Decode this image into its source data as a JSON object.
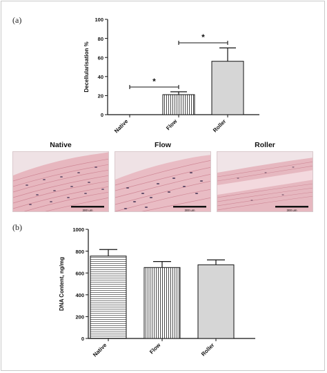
{
  "panels": {
    "a_label": "(a)",
    "b_label": "(b)"
  },
  "micrographs": [
    {
      "title": "Native",
      "scale_label": "300 μm"
    },
    {
      "title": "Flow",
      "scale_label": "300 μm"
    },
    {
      "title": "Roller",
      "scale_label": "300 μm"
    }
  ],
  "colors": {
    "tissue_pink": "#e7b7bf",
    "tissue_light": "#f4dde1",
    "fiber": "#c97b8b",
    "nucleus": "#4b3a5a",
    "bar_fill": "#d6d6d6",
    "axis": "#111111"
  },
  "chart_data": [
    {
      "type": "bar",
      "categories": [
        "Native",
        "Flow",
        "Roller"
      ],
      "values": [
        0,
        21,
        56
      ],
      "errors": [
        0,
        3,
        14
      ],
      "patterns": [
        "none",
        "vertical-lines",
        "solid-grey"
      ],
      "xlabel": "",
      "ylabel": "Decellularisation %",
      "ylim": [
        0,
        100
      ],
      "yticks": [
        0,
        20,
        40,
        60,
        80,
        100
      ],
      "significance": [
        {
          "from": "Native",
          "to": "Flow",
          "label": "*"
        },
        {
          "from": "Flow",
          "to": "Roller",
          "label": "*"
        }
      ],
      "grid": false,
      "legend": "none"
    },
    {
      "type": "bar",
      "categories": [
        "Native",
        "Flow",
        "Roller"
      ],
      "values": [
        755,
        650,
        675
      ],
      "errors": [
        60,
        55,
        45
      ],
      "patterns": [
        "horizontal-lines",
        "vertical-lines",
        "solid-grey"
      ],
      "xlabel": "",
      "ylabel": "DNA Content, ng/mg",
      "ylim": [
        0,
        1000
      ],
      "yticks": [
        0,
        200,
        400,
        600,
        800,
        1000
      ],
      "grid": false,
      "legend": "none"
    }
  ]
}
